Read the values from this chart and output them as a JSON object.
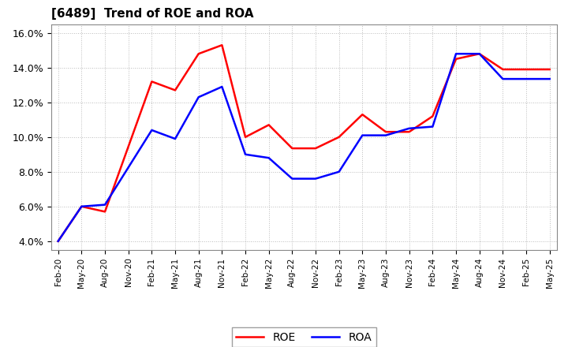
{
  "title": "[6489]  Trend of ROE and ROA",
  "xtick_labels": [
    "Feb-20",
    "May-20",
    "Aug-20",
    "Nov-20",
    "Feb-21",
    "May-21",
    "Aug-21",
    "Nov-21",
    "Feb-22",
    "May-22",
    "Aug-22",
    "Nov-22",
    "Feb-23",
    "May-23",
    "Aug-23",
    "Nov-23",
    "Feb-24",
    "May-24",
    "Aug-24",
    "Nov-24",
    "Feb-25",
    "May-25"
  ],
  "roe_x_labels": [
    "Feb-20",
    "May-20",
    "Aug-20",
    "Feb-21",
    "May-21",
    "Aug-21",
    "Nov-21",
    "Feb-22",
    "May-22",
    "Aug-22",
    "Nov-22",
    "Feb-23",
    "May-23",
    "Aug-23",
    "Nov-23",
    "Feb-24",
    "May-24",
    "Aug-24",
    "Nov-24",
    "Feb-25",
    "May-25"
  ],
  "roe_y": [
    4.0,
    6.0,
    5.7,
    13.2,
    12.7,
    14.8,
    15.3,
    10.0,
    10.7,
    9.35,
    9.35,
    10.0,
    11.3,
    10.3,
    10.3,
    11.2,
    14.5,
    14.8,
    13.9,
    13.9,
    13.9
  ],
  "roa_x_labels": [
    "Feb-20",
    "May-20",
    "Aug-20",
    "Feb-21",
    "May-21",
    "Aug-21",
    "Nov-21",
    "Feb-22",
    "May-22",
    "Aug-22",
    "Nov-22",
    "Feb-23",
    "May-23",
    "Aug-23",
    "Nov-23",
    "Feb-24",
    "May-24",
    "Aug-24",
    "Nov-24",
    "Feb-25",
    "May-25"
  ],
  "roa_y": [
    4.0,
    6.0,
    6.1,
    10.4,
    9.9,
    12.3,
    12.9,
    9.0,
    8.8,
    7.6,
    7.6,
    8.0,
    10.1,
    10.1,
    10.5,
    10.6,
    14.8,
    14.8,
    13.35,
    13.35,
    13.35
  ],
  "ylim": [
    3.5,
    16.5
  ],
  "yticks": [
    4.0,
    6.0,
    8.0,
    10.0,
    12.0,
    14.0,
    16.0
  ],
  "roe_color": "#FF0000",
  "roa_color": "#0000FF",
  "grid_color": "#AAAAAA",
  "bg_color": "#FFFFFF",
  "plot_bg_color": "#FFFFFF",
  "linewidth": 1.8
}
